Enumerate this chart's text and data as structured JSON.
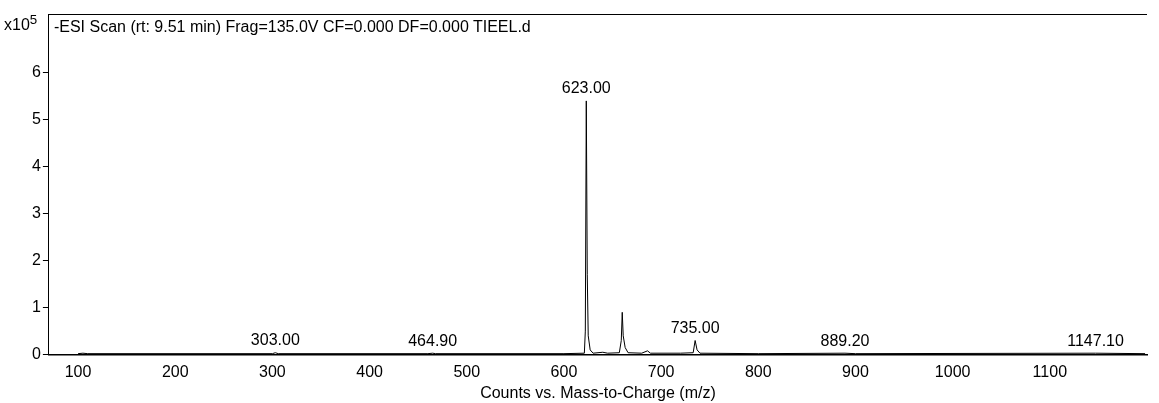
{
  "chart_data": {
    "type": "line",
    "title": "-ESI Scan (rt: 9.51 min) Frag=135.0V CF=0.000 DF=0.000 TIEEL.d",
    "xlabel": "Counts vs. Mass-to-Charge (m/z)",
    "ylabel": "x10$^{5}$",
    "x": [
      100,
      105,
      110,
      300,
      303,
      306,
      460,
      464.9,
      468,
      600,
      621,
      622,
      623,
      624,
      625,
      627,
      630,
      640,
      645,
      657,
      659,
      660,
      661,
      663,
      666,
      680,
      686,
      689,
      720,
      733,
      735,
      737,
      740,
      800,
      889.2,
      900,
      1147.1,
      1198
    ],
    "series": [
      {
        "color": "#000000",
        "values": [
          0.02,
          0.03,
          0.02,
          0.02,
          0.04,
          0.02,
          0.02,
          0.03,
          0.02,
          0.02,
          0.03,
          0.5,
          5.4,
          1.7,
          0.4,
          0.1,
          0.03,
          0.05,
          0.03,
          0.04,
          0.3,
          0.9,
          0.4,
          0.15,
          0.04,
          0.03,
          0.08,
          0.03,
          0.03,
          0.04,
          0.3,
          0.1,
          0.03,
          0.02,
          0.03,
          0.02,
          0.03,
          0.02
        ]
      }
    ],
    "xlim": [
      70,
      1200
    ],
    "ylim": [
      0,
      7.25
    ],
    "xticks": [
      100,
      200,
      300,
      400,
      500,
      600,
      700,
      800,
      900,
      1000,
      1100
    ],
    "yticks": [
      0,
      1,
      2,
      3,
      4,
      5,
      6
    ],
    "marker": "none",
    "line_style": "solid",
    "annotations": [
      {
        "text": "303.00",
        "x": 303,
        "y": 0.04
      },
      {
        "text": "464.90",
        "x": 464.9,
        "y": 0.03
      },
      {
        "text": "623.00",
        "x": 623,
        "y": 5.4
      },
      {
        "text": "735.00",
        "x": 735,
        "y": 0.3
      },
      {
        "text": "889.20",
        "x": 889.2,
        "y": 0.03
      },
      {
        "text": "1147.10",
        "x": 1147.1,
        "y": 0.03
      }
    ]
  }
}
